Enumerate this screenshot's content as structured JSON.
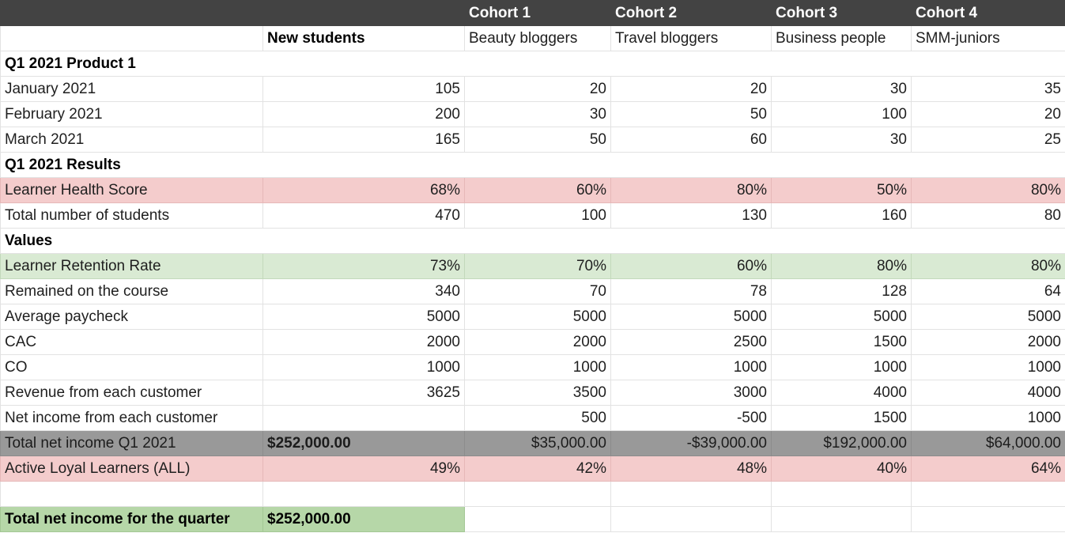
{
  "header": {
    "cohorts": [
      "Cohort 1",
      "Cohort 2",
      "Cohort 3",
      "Cohort 4"
    ]
  },
  "subheader": {
    "new_students": "New students",
    "cohort_names": [
      "Beauty bloggers",
      "Travel bloggers",
      "Business people",
      "SMM-juniors"
    ]
  },
  "sections": {
    "product": "Q1 2021 Product 1",
    "results": "Q1 2021 Results",
    "values": "Values"
  },
  "months": [
    {
      "label": "January 2021",
      "values": [
        "105",
        "20",
        "20",
        "30",
        "35"
      ]
    },
    {
      "label": "February 2021",
      "values": [
        "200",
        "30",
        "50",
        "100",
        "20"
      ]
    },
    {
      "label": "March 2021",
      "values": [
        "165",
        "50",
        "60",
        "30",
        "25"
      ]
    }
  ],
  "results": [
    {
      "label": "Learner Health Score",
      "values": [
        "68%",
        "60%",
        "80%",
        "50%",
        "80%"
      ]
    },
    {
      "label": "Total number of students",
      "values": [
        "470",
        "100",
        "130",
        "160",
        "80"
      ]
    }
  ],
  "values": [
    {
      "label": "Learner Retention Rate",
      "values": [
        "73%",
        "70%",
        "60%",
        "80%",
        "80%"
      ]
    },
    {
      "label": "Remained on the course",
      "values": [
        "340",
        "70",
        "78",
        "128",
        "64"
      ]
    },
    {
      "label": "Average paycheck",
      "values": [
        "5000",
        "5000",
        "5000",
        "5000",
        "5000"
      ]
    },
    {
      "label": "CAC",
      "values": [
        "2000",
        "2000",
        "2500",
        "1500",
        "2000"
      ]
    },
    {
      "label": "CO",
      "values": [
        "1000",
        "1000",
        "1000",
        "1000",
        "1000"
      ]
    },
    {
      "label": "Revenue from each customer",
      "values": [
        "3625",
        "3500",
        "3000",
        "4000",
        "4000"
      ]
    },
    {
      "label": "Net income from each customer",
      "values": [
        "",
        "500",
        "-500",
        "1500",
        "1000"
      ]
    },
    {
      "label": "Total net income Q1 2021",
      "values": [
        "$252,000.00",
        "$35,000.00",
        "-$39,000.00",
        "$192,000.00",
        "$64,000.00"
      ]
    },
    {
      "label": "Active Loyal Learners (ALL)",
      "values": [
        "49%",
        "42%",
        "48%",
        "40%",
        "64%"
      ]
    }
  ],
  "quarter_total": {
    "label": "Total net income for the quarter",
    "value": "$252,000.00"
  },
  "colors": {
    "header_bg": "#434343",
    "pink_highlight": "#f4cccc",
    "green_highlight": "#d9ead3",
    "grey_highlight": "#999999",
    "total_green": "#b6d7a8"
  }
}
